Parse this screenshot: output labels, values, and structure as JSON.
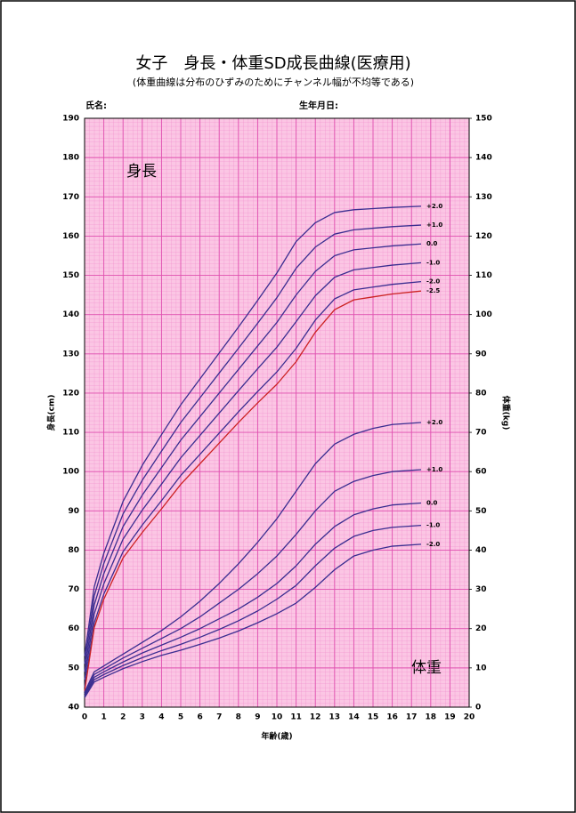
{
  "chart_data": {
    "type": "line",
    "title": "女子　身長・体重SD成長曲線(医療用)",
    "subtitle": "(体重曲線は分布のひずみのためにチャンネル幅が不均等である)",
    "annotations": [
      "氏名:",
      "生年月日:",
      "身長",
      "体重"
    ],
    "xlabel": "年齢(歳)",
    "ylabel": "身長(cm)",
    "y2label": "体重(kg)",
    "x": [
      0,
      0.5,
      1,
      2,
      3,
      4,
      5,
      6,
      7,
      8,
      9,
      10,
      11,
      12,
      13,
      14,
      15,
      16,
      17.5
    ],
    "xlim": [
      0,
      20
    ],
    "xticks": [
      0,
      1,
      2,
      3,
      4,
      5,
      6,
      7,
      8,
      9,
      10,
      11,
      12,
      13,
      14,
      15,
      16,
      17,
      18,
      19,
      20
    ],
    "ylim": [
      40,
      190
    ],
    "yticks": [
      40,
      50,
      60,
      70,
      80,
      90,
      100,
      110,
      120,
      130,
      140,
      150,
      160,
      170,
      180,
      190
    ],
    "y2lim": [
      0,
      150
    ],
    "y2ticks": [
      0,
      10,
      20,
      30,
      40,
      50,
      60,
      70,
      80,
      90,
      100,
      110,
      120,
      130,
      140,
      150
    ],
    "grid": true,
    "series": [
      {
        "name": "+2.0",
        "color": "#3a2d90",
        "values": [
          53,
          70.6,
          79.2,
          92.4,
          101.6,
          109.4,
          117,
          123.6,
          130.2,
          136.8,
          143.6,
          150.6,
          158.6,
          163.4,
          166,
          166.7,
          167,
          167.3,
          167.6
        ]
      },
      {
        "name": "+1.0",
        "color": "#3a2d90",
        "values": [
          51,
          68.3,
          76.6,
          89.2,
          97.8,
          105.2,
          112.5,
          118.8,
          125.1,
          131.4,
          137.8,
          144.3,
          151.8,
          157.2,
          160.5,
          161.6,
          162,
          162.4,
          162.8
        ]
      },
      {
        "name": "0.0",
        "color": "#3a2d90",
        "values": [
          49,
          66,
          74,
          86,
          94,
          101,
          108,
          114,
          120,
          126,
          132,
          138,
          145,
          151,
          155,
          156.5,
          157,
          157.5,
          158
        ]
      },
      {
        "name": "-1.0",
        "color": "#3a2d90",
        "values": [
          47,
          63.7,
          71.4,
          82.8,
          90.2,
          96.8,
          103.5,
          109.2,
          114.9,
          120.6,
          126.2,
          131.7,
          138.2,
          144.8,
          149.5,
          151.4,
          152,
          152.6,
          153.2
        ]
      },
      {
        "name": "-2.0",
        "color": "#3a2d90",
        "values": [
          45,
          61.4,
          68.8,
          79.6,
          86.4,
          92.6,
          99,
          104.4,
          109.8,
          115.2,
          120.4,
          125.4,
          131.4,
          138.6,
          144,
          146.3,
          147,
          147.7,
          148.4
        ]
      },
      {
        "name": "-2.5",
        "color": "#cc2222",
        "values": [
          44,
          60.25,
          67.5,
          78,
          84.5,
          90.5,
          96.75,
          102,
          107.25,
          112.5,
          117.5,
          122.25,
          128,
          135.5,
          141.25,
          143.75,
          144.5,
          145.25,
          146
        ]
      },
      {
        "name": "+2.0",
        "color": "#3a2d90",
        "axis": "y2",
        "values": [
          3.8,
          9,
          10.5,
          13.5,
          16.5,
          19.5,
          23,
          27,
          31.5,
          36.5,
          42,
          48,
          55,
          62,
          67,
          69.5,
          71,
          72,
          72.5
        ]
      },
      {
        "name": "+1.0",
        "color": "#3a2d90",
        "axis": "y2",
        "values": [
          3.4,
          8.3,
          9.7,
          12.5,
          15,
          17.5,
          20,
          23,
          26.5,
          30,
          34,
          38.5,
          44,
          50,
          55,
          57.5,
          59,
          60,
          60.5
        ]
      },
      {
        "name": "0.0",
        "color": "#3a2d90",
        "axis": "y2",
        "values": [
          3,
          7.6,
          9,
          11.5,
          13.8,
          15.8,
          17.8,
          20,
          22.5,
          25,
          28,
          31.5,
          36,
          41.5,
          46,
          49,
          50.5,
          51.5,
          52
        ]
      },
      {
        "name": "-1.0",
        "color": "#3a2d90",
        "axis": "y2",
        "values": [
          2.7,
          7,
          8.3,
          10.6,
          12.6,
          14.4,
          16,
          17.8,
          19.8,
          22,
          24.5,
          27.5,
          31,
          36,
          40.5,
          43.5,
          45,
          45.8,
          46.3
        ]
      },
      {
        "name": "-2.0",
        "color": "#3a2d90",
        "axis": "y2",
        "values": [
          2.4,
          6.4,
          7.6,
          9.8,
          11.6,
          13.2,
          14.5,
          16,
          17.6,
          19.4,
          21.5,
          23.8,
          26.5,
          30.5,
          35,
          38.5,
          40,
          41,
          41.5
        ]
      }
    ]
  }
}
